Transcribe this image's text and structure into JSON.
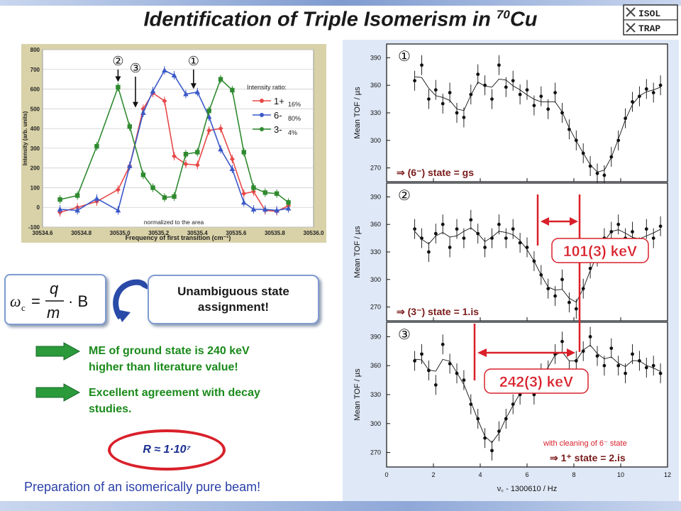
{
  "title": {
    "main": "Identification of Triple Isomerism in ",
    "sup": "70",
    "tail": "Cu"
  },
  "logo": {
    "line1": "ISOL",
    "line2": "TRAP"
  },
  "chart_data": [
    {
      "type": "line",
      "xlabel": "Frequency of first transition (cm⁻¹)",
      "ylabel": "Intensity (arb. units)",
      "xlim": [
        30534.6,
        30536.0
      ],
      "ylim": [
        -100,
        800
      ],
      "xticks": [
        30534.6,
        30534.8,
        30535.0,
        30535.2,
        30535.4,
        30535.6,
        30535.8,
        30536.0
      ],
      "yticks": [
        -100,
        0,
        100,
        200,
        300,
        400,
        500,
        600,
        700,
        800
      ],
      "legend_title": "Intensity ratio:",
      "legend_placement": "top-right",
      "annotation": "normalized to the area",
      "markers": [
        {
          "symbol": "②",
          "x": 30534.99
        },
        {
          "symbol": "③",
          "x": 30535.08
        },
        {
          "symbol": "①",
          "x": 30535.38
        }
      ],
      "series": [
        {
          "name": "1+",
          "ratio": "16%",
          "color": "#e84848",
          "marker": "diamond",
          "x": [
            30534.69,
            30534.78,
            30534.88,
            30534.99,
            30535.05,
            30535.12,
            30535.17,
            30535.23,
            30535.28,
            30535.34,
            30535.4,
            30535.46,
            30535.52,
            30535.58,
            30535.64,
            30535.69,
            30535.75,
            30535.81,
            30535.87
          ],
          "y": [
            -25,
            0,
            30,
            90,
            210,
            500,
            580,
            540,
            260,
            220,
            215,
            390,
            400,
            245,
            70,
            80,
            -15,
            -20,
            8
          ]
        },
        {
          "name": "6-",
          "ratio": "80%",
          "color": "#3a58c8",
          "marker": "triangle",
          "x": [
            30534.69,
            30534.78,
            30534.88,
            30534.99,
            30535.05,
            30535.12,
            30535.17,
            30535.23,
            30535.28,
            30535.34,
            30535.4,
            30535.46,
            30535.52,
            30535.58,
            30535.64,
            30535.69,
            30535.75,
            30535.81,
            30535.87
          ],
          "y": [
            -10,
            -15,
            45,
            -15,
            210,
            480,
            590,
            695,
            670,
            575,
            585,
            460,
            295,
            195,
            25,
            -10,
            -10,
            -15,
            -5
          ]
        },
        {
          "name": "3-",
          "ratio": "4%",
          "color": "#2f8a2f",
          "marker": "square",
          "x": [
            30534.69,
            30534.78,
            30534.88,
            30534.99,
            30535.05,
            30535.12,
            30535.17,
            30535.23,
            30535.28,
            30535.34,
            30535.4,
            30535.46,
            30535.52,
            30535.58,
            30535.64,
            30535.69,
            30535.75,
            30535.81,
            30535.87
          ],
          "y": [
            40,
            60,
            310,
            610,
            410,
            165,
            100,
            50,
            55,
            270,
            280,
            490,
            650,
            595,
            280,
            100,
            75,
            70,
            25
          ]
        }
      ]
    },
    {
      "type": "scatter",
      "xlabel": "ν꜀ - 1300610 / Hz",
      "ylabel": "Mean TOF / µs",
      "xlim": [
        0,
        12
      ],
      "xticks": [
        0,
        2,
        4,
        6,
        8,
        10,
        12
      ],
      "panels": [
        {
          "symbol": "①",
          "state_label": "⇒ (6⁻) state = gs",
          "ylim": [
            255,
            405
          ],
          "yticks": [
            270,
            300,
            330,
            360,
            390
          ],
          "x": [
            1.2,
            1.5,
            1.8,
            2.1,
            2.4,
            2.7,
            3.0,
            3.3,
            3.6,
            3.9,
            4.2,
            4.5,
            4.8,
            5.1,
            5.4,
            5.7,
            6.0,
            6.3,
            6.6,
            6.9,
            7.2,
            7.5,
            7.8,
            8.1,
            8.4,
            8.7,
            9.0,
            9.3,
            9.6,
            9.9,
            10.2,
            10.5,
            10.8,
            11.1,
            11.4,
            11.7
          ],
          "y": [
            365,
            382,
            345,
            355,
            340,
            352,
            330,
            325,
            350,
            372,
            360,
            345,
            382,
            358,
            365,
            350,
            355,
            338,
            348,
            334,
            352,
            330,
            312,
            300,
            286,
            272,
            264,
            262,
            282,
            300,
            324,
            342,
            348,
            356,
            352,
            360
          ]
        },
        {
          "symbol": "②",
          "state_label": "⇒ (3⁻) state = 1.is",
          "ylim": [
            255,
            405
          ],
          "yticks": [
            270,
            300,
            330,
            360,
            390
          ],
          "x": [
            1.2,
            1.5,
            1.8,
            2.1,
            2.4,
            2.7,
            3.0,
            3.3,
            3.6,
            3.9,
            4.2,
            4.5,
            4.8,
            5.1,
            5.4,
            5.7,
            6.0,
            6.3,
            6.6,
            6.9,
            7.2,
            7.5,
            7.8,
            8.1,
            8.4,
            8.7,
            9.0,
            9.3,
            9.6,
            9.9,
            10.2,
            10.5,
            10.8,
            11.1,
            11.4,
            11.7
          ],
          "y": [
            355,
            345,
            330,
            350,
            360,
            335,
            355,
            345,
            365,
            350,
            335,
            345,
            360,
            345,
            355,
            340,
            335,
            320,
            305,
            290,
            282,
            300,
            275,
            268,
            290,
            312,
            325,
            345,
            352,
            360,
            345,
            352,
            335,
            355,
            345,
            358
          ]
        },
        {
          "symbol": "③",
          "state_label": "⇒ 1⁺ state = 2.is",
          "extra_note": "with cleaning of 6⁻ state",
          "ylim": [
            255,
            405
          ],
          "yticks": [
            270,
            300,
            330,
            360,
            390
          ],
          "x": [
            1.2,
            1.5,
            1.8,
            2.1,
            2.4,
            2.7,
            3.0,
            3.3,
            3.6,
            3.9,
            4.2,
            4.5,
            4.8,
            5.1,
            5.4,
            5.7,
            6.0,
            6.3,
            6.6,
            6.9,
            7.2,
            7.5,
            7.8,
            8.1,
            8.4,
            8.7,
            9.0,
            9.3,
            9.6,
            9.9,
            10.2,
            10.5,
            10.8,
            11.1,
            11.4,
            11.7
          ],
          "y": [
            365,
            372,
            355,
            340,
            382,
            362,
            352,
            345,
            320,
            305,
            285,
            272,
            292,
            305,
            320,
            330,
            345,
            330,
            352,
            355,
            372,
            385,
            355,
            365,
            375,
            390,
            370,
            360,
            378,
            360,
            352,
            372,
            365,
            358,
            360,
            352
          ]
        }
      ],
      "annotations": [
        {
          "panel": 1,
          "label": "101(3) keV"
        },
        {
          "panel": 2,
          "label": "242(3) keV"
        }
      ]
    }
  ],
  "formula": {
    "lhs": "ω",
    "sub": "c",
    "num": "q",
    "den": "m",
    "rhs": "· B"
  },
  "assignment": {
    "line1": "Unambiguous state",
    "line2": "assignment!"
  },
  "notes": [
    {
      "line1": "ME of ground state is 240 keV",
      "line2": "higher than literature value!"
    },
    {
      "line1": "Excellent agreement with decay",
      "line2": "studies."
    }
  ],
  "resolving_power": "R ≈ 1·10⁷",
  "footer": "Preparation of an isomerically pure beam!"
}
